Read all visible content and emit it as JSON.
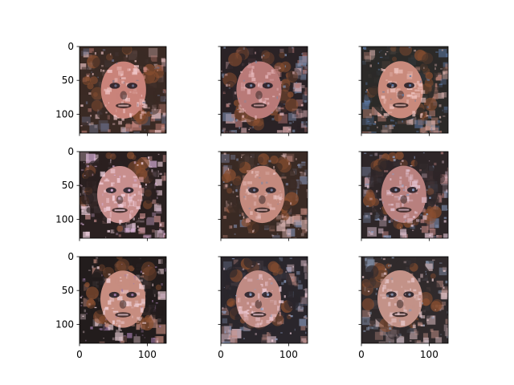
{
  "figure": {
    "background": "#ffffff"
  },
  "chart_data": {
    "type": "image-grid",
    "rows": 3,
    "cols": 3,
    "image_size": [
      128,
      128
    ],
    "xlim": [
      0,
      128
    ],
    "ylim": [
      128,
      0
    ],
    "xticks": [
      0,
      100
    ],
    "yticks": [
      0,
      50,
      100
    ],
    "xtick_labels": [
      "0",
      "100"
    ],
    "ytick_labels": [
      "0",
      "50",
      "100"
    ],
    "shared_axes": true,
    "grid": false,
    "title": "",
    "xlabel": "",
    "ylabel": "",
    "images": [
      {
        "row": 0,
        "col": 0,
        "content": "generated face",
        "palette": [
          "#3a2a24",
          "#c9837a",
          "#6a6f8a",
          "#f0c7c8"
        ]
      },
      {
        "row": 0,
        "col": 1,
        "content": "generated face",
        "palette": [
          "#2a2226",
          "#b97a78",
          "#7a8aa8",
          "#e8b9bd"
        ]
      },
      {
        "row": 0,
        "col": 2,
        "content": "generated face",
        "palette": [
          "#2c2a28",
          "#c98a7c",
          "#5d7aa6",
          "#efc4c0"
        ]
      },
      {
        "row": 1,
        "col": 0,
        "content": "generated face",
        "palette": [
          "#2a2020",
          "#c88f8e",
          "#d8b0d8",
          "#f6d6e4"
        ]
      },
      {
        "row": 1,
        "col": 1,
        "content": "generated face",
        "palette": [
          "#3a2a24",
          "#c48a7e",
          "#7c86a4",
          "#e9c1c0"
        ]
      },
      {
        "row": 1,
        "col": 2,
        "content": "generated face",
        "palette": [
          "#2e2628",
          "#b8807e",
          "#8ea2c8",
          "#e4c6d6"
        ]
      },
      {
        "row": 2,
        "col": 0,
        "content": "generated face",
        "palette": [
          "#221c1c",
          "#c78d80",
          "#a07aa8",
          "#f0d2da"
        ]
      },
      {
        "row": 2,
        "col": 1,
        "content": "generated face",
        "palette": [
          "#2a262c",
          "#c08b84",
          "#8ea0c4",
          "#f2d0dc"
        ]
      },
      {
        "row": 2,
        "col": 2,
        "content": "generated face",
        "palette": [
          "#302a2c",
          "#c39288",
          "#8896b0",
          "#e8c8cc"
        ]
      }
    ]
  }
}
